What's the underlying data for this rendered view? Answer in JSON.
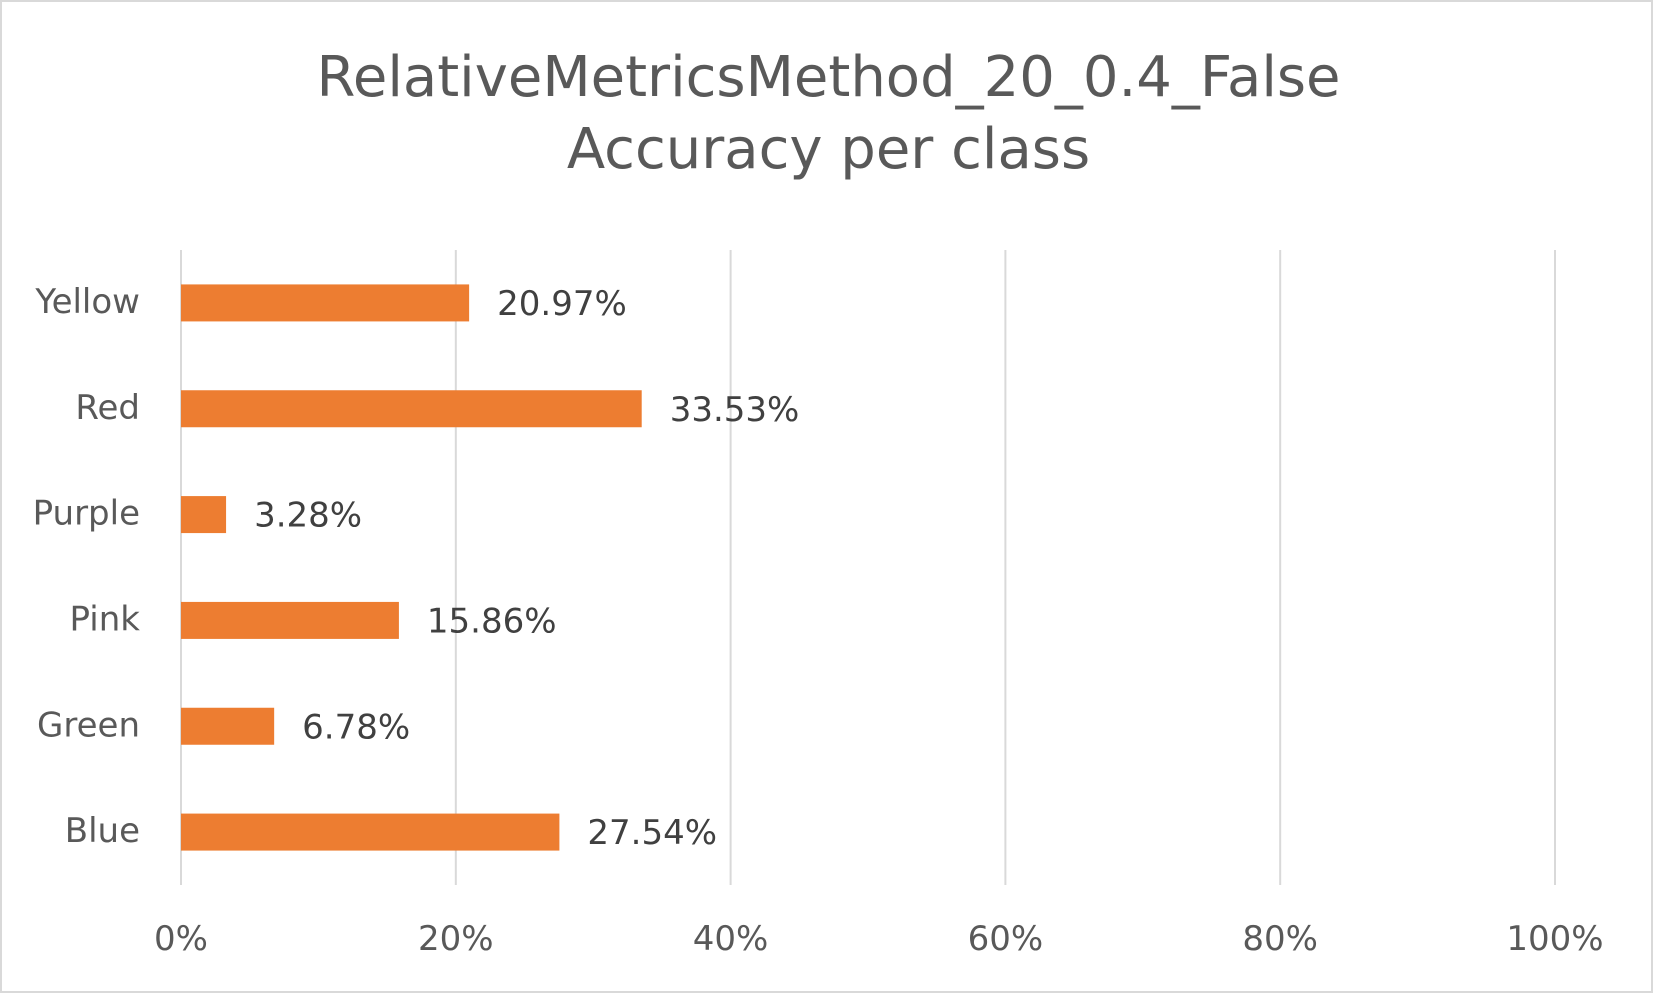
{
  "chart_data": {
    "type": "bar",
    "orientation": "horizontal",
    "title": [
      "RelativeMetricsMethod_20_0.4_False",
      "Accuracy per class"
    ],
    "categories": [
      "Yellow",
      "Red",
      "Purple",
      "Pink",
      "Green",
      "Blue"
    ],
    "values": [
      20.97,
      33.53,
      3.28,
      15.86,
      6.78,
      27.54
    ],
    "data_labels": [
      "20.97%",
      "33.53%",
      "3.28%",
      "15.86%",
      "6.78%",
      "27.54%"
    ],
    "x_ticks": [
      "0%",
      "20%",
      "40%",
      "60%",
      "80%",
      "100%"
    ],
    "x_tick_values": [
      0,
      20,
      40,
      60,
      80,
      100
    ],
    "xlim": [
      0,
      100
    ],
    "xlabel": "",
    "ylabel": "",
    "grid": "vertical",
    "legend": "none",
    "bar_color": "#ED7D31",
    "grid_color": "#D9D9D9",
    "text_color": "#595959"
  }
}
